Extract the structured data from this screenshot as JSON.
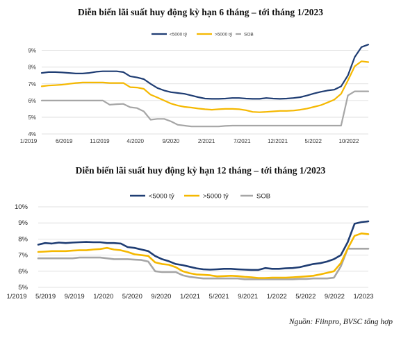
{
  "source": "Nguồn: Fiinpro, BVSC tổng hợp",
  "colors": {
    "lt5000": "#1f3d73",
    "gt5000": "#f5b800",
    "sob": "#a6a6a6"
  },
  "chart_data": [
    {
      "type": "line",
      "title": "Diễn biến lãi suất huy động kỳ hạn 6 tháng – tới tháng 1/2023",
      "y_tick_labels": [
        "4%",
        "5%",
        "6%",
        "7%",
        "8%",
        "9%"
      ],
      "x_tick_labels": [
        "1/2019",
        "6/2019",
        "11/2019",
        "4/2020",
        "9/2020",
        "2/2021",
        "7/2021",
        "12/2021",
        "5/2022",
        "10/2022"
      ],
      "ylim": [
        4,
        9.4
      ],
      "xlim": [
        0,
        48
      ],
      "grid": true,
      "legend_position": "top-right",
      "x": [
        0,
        1,
        2,
        3,
        4,
        5,
        6,
        7,
        8,
        9,
        10,
        11,
        12,
        13,
        14,
        15,
        16,
        17,
        18,
        19,
        20,
        21,
        22,
        23,
        24,
        25,
        26,
        27,
        28,
        29,
        30,
        31,
        32,
        33,
        34,
        35,
        36,
        37,
        38,
        39,
        40,
        41,
        42,
        43,
        44,
        45,
        46,
        47,
        48
      ],
      "series": [
        {
          "name": "<5000 tỷ",
          "color_key": "lt5000",
          "values": [
            7.65,
            7.7,
            7.7,
            7.68,
            7.65,
            7.62,
            7.62,
            7.65,
            7.72,
            7.75,
            7.75,
            7.75,
            7.7,
            7.45,
            7.38,
            7.28,
            7.0,
            6.75,
            6.6,
            6.5,
            6.45,
            6.4,
            6.3,
            6.2,
            6.12,
            6.1,
            6.1,
            6.12,
            6.15,
            6.15,
            6.12,
            6.1,
            6.1,
            6.15,
            6.12,
            6.1,
            6.12,
            6.15,
            6.2,
            6.3,
            6.42,
            6.52,
            6.6,
            6.65,
            6.85,
            7.5,
            8.6,
            9.2,
            9.35
          ]
        },
        {
          "name": ">5000 tỷ",
          "color_key": "gt5000",
          "values": [
            6.85,
            6.9,
            6.92,
            6.95,
            7.0,
            7.05,
            7.08,
            7.08,
            7.08,
            7.08,
            7.05,
            7.05,
            7.05,
            6.8,
            6.78,
            6.7,
            6.35,
            6.18,
            6.0,
            5.82,
            5.7,
            5.62,
            5.58,
            5.52,
            5.48,
            5.45,
            5.48,
            5.5,
            5.5,
            5.48,
            5.42,
            5.32,
            5.3,
            5.32,
            5.35,
            5.38,
            5.38,
            5.4,
            5.45,
            5.52,
            5.62,
            5.72,
            5.88,
            6.05,
            6.4,
            7.2,
            8.05,
            8.35,
            8.3
          ]
        },
        {
          "name": "SOB",
          "color_key": "sob",
          "values": [
            6.0,
            6.0,
            6.0,
            6.0,
            6.0,
            6.0,
            6.0,
            6.0,
            6.0,
            6.0,
            5.75,
            5.78,
            5.8,
            5.6,
            5.55,
            5.35,
            4.85,
            4.9,
            4.9,
            4.75,
            4.55,
            4.5,
            4.45,
            4.45,
            4.45,
            4.45,
            4.45,
            4.48,
            4.5,
            4.5,
            4.5,
            4.5,
            4.5,
            4.5,
            4.5,
            4.5,
            4.5,
            4.5,
            4.5,
            4.5,
            4.5,
            4.5,
            4.5,
            4.5,
            4.5,
            6.3,
            6.55,
            6.55,
            6.55
          ]
        }
      ]
    },
    {
      "type": "line",
      "title": "Diễn biến lãi suất huy động kỳ hạn 12 tháng – tới tháng 1/2023",
      "y_tick_labels": [
        "5%",
        "6%",
        "7%",
        "8%",
        "9%",
        "10%"
      ],
      "x_tick_labels": [
        "1/2019",
        "5/2019",
        "9/2019",
        "1/2020",
        "5/2020",
        "9/2020",
        "1/2021",
        "5/2021",
        "9/2021",
        "1/2022",
        "5/2022",
        "9/2022",
        "1/2023"
      ],
      "ylim": [
        5,
        10
      ],
      "xlim": [
        0,
        48
      ],
      "grid": true,
      "legend_position": "top",
      "x": [
        0,
        1,
        2,
        3,
        4,
        5,
        6,
        7,
        8,
        9,
        10,
        11,
        12,
        13,
        14,
        15,
        16,
        17,
        18,
        19,
        20,
        21,
        22,
        23,
        24,
        25,
        26,
        27,
        28,
        29,
        30,
        31,
        32,
        33,
        34,
        35,
        36,
        37,
        38,
        39,
        40,
        41,
        42,
        43,
        44,
        45,
        46,
        47,
        48
      ],
      "series": [
        {
          "name": "<5000 tỷ",
          "color_key": "lt5000",
          "values": [
            7.65,
            7.75,
            7.72,
            7.78,
            7.75,
            7.78,
            7.8,
            7.82,
            7.8,
            7.8,
            7.75,
            7.75,
            7.72,
            7.5,
            7.45,
            7.35,
            7.25,
            6.95,
            6.75,
            6.62,
            6.45,
            6.38,
            6.28,
            6.18,
            6.12,
            6.1,
            6.12,
            6.15,
            6.15,
            6.12,
            6.1,
            6.08,
            6.08,
            6.2,
            6.15,
            6.15,
            6.18,
            6.2,
            6.25,
            6.35,
            6.45,
            6.5,
            6.6,
            6.75,
            7.0,
            7.8,
            8.95,
            9.05,
            9.1
          ]
        },
        {
          "name": ">5000 tỷ",
          "color_key": "gt5000",
          "values": [
            7.2,
            7.22,
            7.25,
            7.25,
            7.25,
            7.28,
            7.3,
            7.3,
            7.35,
            7.38,
            7.45,
            7.35,
            7.3,
            7.2,
            7.05,
            7.0,
            6.95,
            6.55,
            6.45,
            6.4,
            6.25,
            6.0,
            5.88,
            5.8,
            5.78,
            5.75,
            5.68,
            5.7,
            5.72,
            5.7,
            5.65,
            5.62,
            5.58,
            5.58,
            5.6,
            5.6,
            5.6,
            5.62,
            5.65,
            5.68,
            5.72,
            5.8,
            5.9,
            6.0,
            6.5,
            7.4,
            8.2,
            8.35,
            8.3
          ]
        },
        {
          "name": "SOB",
          "color_key": "sob",
          "values": [
            6.8,
            6.8,
            6.8,
            6.8,
            6.8,
            6.8,
            6.85,
            6.85,
            6.85,
            6.85,
            6.8,
            6.75,
            6.75,
            6.75,
            6.72,
            6.7,
            6.6,
            6.0,
            5.95,
            5.95,
            5.95,
            5.75,
            5.65,
            5.6,
            5.55,
            5.55,
            5.55,
            5.55,
            5.55,
            5.55,
            5.5,
            5.5,
            5.5,
            5.5,
            5.5,
            5.5,
            5.5,
            5.5,
            5.52,
            5.52,
            5.55,
            5.55,
            5.55,
            5.6,
            6.3,
            7.4,
            7.4,
            7.4,
            7.4
          ]
        }
      ]
    }
  ]
}
